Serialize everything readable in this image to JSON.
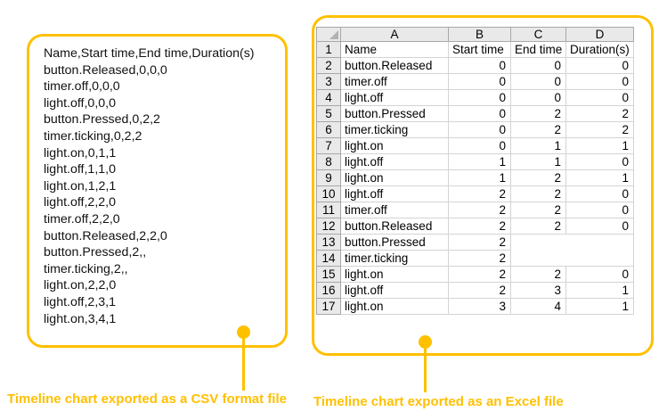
{
  "accent_color": "#FFC000",
  "csv_panel": {
    "caption": "Timeline chart exported as a CSV format file",
    "lines": [
      "Name,Start time,End time,Duration(s)",
      "button.Released,0,0,0",
      "timer.off,0,0,0",
      "light.off,0,0,0",
      "button.Pressed,0,2,2",
      "timer.ticking,0,2,2",
      "light.on,0,1,1",
      "light.off,1,1,0",
      "light.on,1,2,1",
      "light.off,2,2,0",
      "timer.off,2,2,0",
      "button.Released,2,2,0",
      "button.Pressed,2,,",
      "timer.ticking,2,,",
      "light.on,2,2,0",
      "light.off,2,3,1",
      "light.on,3,4,1"
    ]
  },
  "excel_panel": {
    "caption": "Timeline chart exported as an Excel file",
    "column_letters": [
      "A",
      "B",
      "C",
      "D"
    ],
    "rows": [
      {
        "num": "1",
        "cells": [
          "Name",
          "Start time",
          "End time",
          "Duration(s)"
        ]
      },
      {
        "num": "2",
        "cells": [
          "button.Released",
          "0",
          "0",
          "0"
        ]
      },
      {
        "num": "3",
        "cells": [
          "timer.off",
          "0",
          "0",
          "0"
        ]
      },
      {
        "num": "4",
        "cells": [
          "light.off",
          "0",
          "0",
          "0"
        ]
      },
      {
        "num": "5",
        "cells": [
          "button.Pressed",
          "0",
          "2",
          "2"
        ]
      },
      {
        "num": "6",
        "cells": [
          "timer.ticking",
          "0",
          "2",
          "2"
        ]
      },
      {
        "num": "7",
        "cells": [
          "light.on",
          "0",
          "1",
          "1"
        ]
      },
      {
        "num": "8",
        "cells": [
          "light.off",
          "1",
          "1",
          "0"
        ]
      },
      {
        "num": "9",
        "cells": [
          "light.on",
          "1",
          "2",
          "1"
        ]
      },
      {
        "num": "10",
        "cells": [
          "light.off",
          "2",
          "2",
          "0"
        ]
      },
      {
        "num": "11",
        "cells": [
          "timer.off",
          "2",
          "2",
          "0"
        ]
      },
      {
        "num": "12",
        "cells": [
          "button.Released",
          "2",
          "2",
          "0"
        ]
      },
      {
        "num": "13",
        "cells": [
          "button.Pressed",
          "2",
          "",
          ""
        ]
      },
      {
        "num": "14",
        "cells": [
          "timer.ticking",
          "2",
          "",
          ""
        ]
      },
      {
        "num": "15",
        "cells": [
          "light.on",
          "2",
          "2",
          "0"
        ]
      },
      {
        "num": "16",
        "cells": [
          "light.off",
          "2",
          "3",
          "1"
        ]
      },
      {
        "num": "17",
        "cells": [
          "light.on",
          "3",
          "4",
          "1"
        ]
      }
    ]
  }
}
